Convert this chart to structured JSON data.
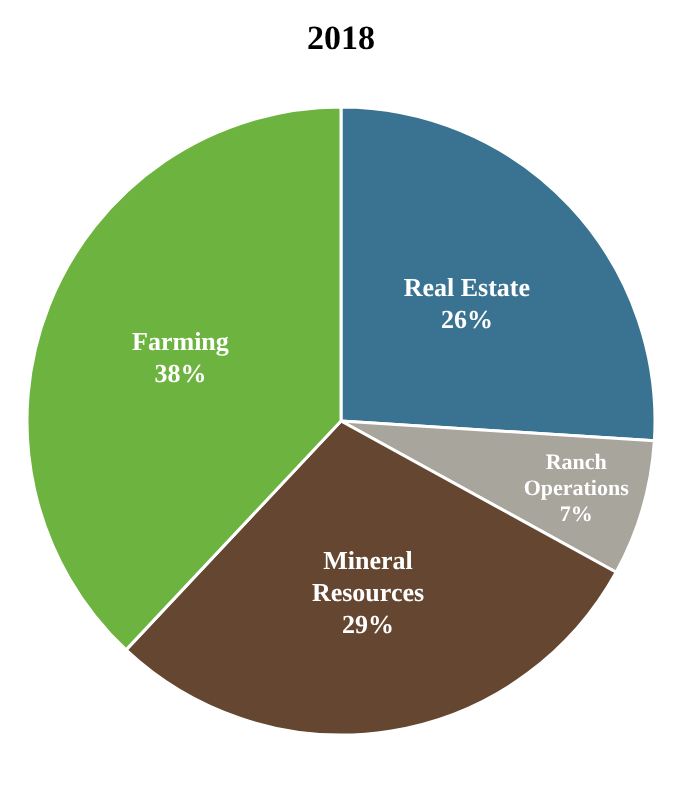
{
  "chart_data": {
    "type": "pie",
    "title": "2018",
    "categories": [
      "Real Estate",
      "Ranch Operations",
      "Mineral Resources",
      "Farming"
    ],
    "values": [
      26,
      7,
      29,
      38
    ],
    "colors": [
      "#3a7391",
      "#a8a59c",
      "#654630",
      "#6cb43f"
    ],
    "value_labels": [
      "26%",
      "7%",
      "29%",
      "38%"
    ]
  }
}
